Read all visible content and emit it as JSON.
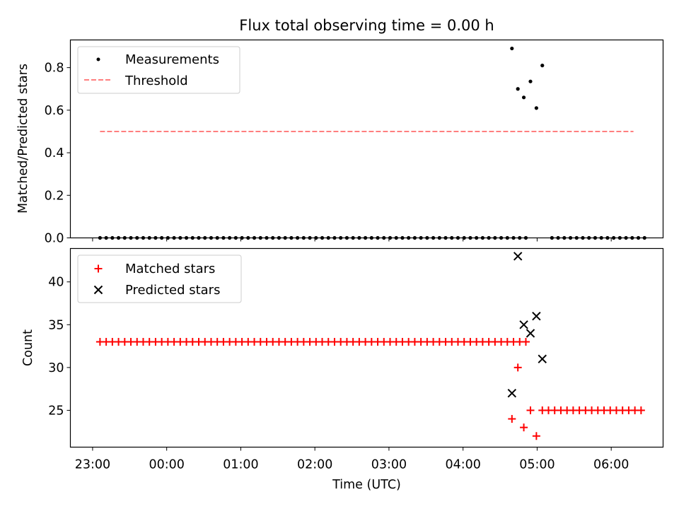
{
  "chart_data": [
    {
      "type": "scatter",
      "title": "Flux total observing time = 0.00 h",
      "xlabel": "",
      "ylabel": "Matched/Predicted stars",
      "ylim": [
        0.0,
        0.93
      ],
      "xlim_hours_since_23": [
        -0.3,
        7.7
      ],
      "yticks": [
        0.0,
        0.2,
        0.4,
        0.6,
        0.8
      ],
      "ytick_labels": [
        "0.0",
        "0.2",
        "0.4",
        "0.6",
        "0.8"
      ],
      "legend": {
        "position": "upper-left",
        "entries": [
          "Measurements",
          "Threshold"
        ]
      },
      "threshold": {
        "name": "Threshold",
        "y": 0.5,
        "x_start": 0.1,
        "x_end": 7.3,
        "color": "#ff7f7f"
      },
      "series": [
        {
          "name": "Measurements",
          "color": "#000000",
          "marker": "dot",
          "zero_run_1": {
            "start": 0.1,
            "step": 0.0833,
            "count": 70,
            "value": 0.0
          },
          "zero_run_2": {
            "start": 6.2,
            "step": 0.0833,
            "count": 16,
            "value": 0.0
          },
          "points": [
            {
              "x": 5.66,
              "y": 0.89
            },
            {
              "x": 5.74,
              "y": 0.7
            },
            {
              "x": 5.82,
              "y": 0.66
            },
            {
              "x": 5.91,
              "y": 0.735
            },
            {
              "x": 5.99,
              "y": 0.61
            },
            {
              "x": 6.07,
              "y": 0.81
            }
          ]
        }
      ]
    },
    {
      "type": "scatter",
      "title": "",
      "xlabel": "Time (UTC)",
      "ylabel": "Count",
      "ylim": [
        20.7,
        43.9
      ],
      "xlim_hours_since_23": [
        -0.3,
        7.7
      ],
      "yticks": [
        25,
        30,
        35,
        40
      ],
      "ytick_labels": [
        "25",
        "30",
        "35",
        "40"
      ],
      "xticks": [
        0,
        1,
        2,
        3,
        4,
        5,
        6,
        7
      ],
      "xtick_labels": [
        "23:00",
        "00:00",
        "01:00",
        "02:00",
        "03:00",
        "04:00",
        "05:00",
        "06:00"
      ],
      "legend": {
        "position": "upper-left",
        "entries": [
          "Matched stars",
          "Predicted stars"
        ]
      },
      "series": [
        {
          "name": "Matched stars",
          "color": "#ff0000",
          "marker": "plus",
          "run_1": {
            "start": 0.1,
            "step": 0.0833,
            "count": 70,
            "value": 33
          },
          "run_2": {
            "start": 6.07,
            "step": 0.0833,
            "count": 17,
            "value": 25
          },
          "points": [
            {
              "x": 5.66,
              "y": 24
            },
            {
              "x": 5.74,
              "y": 30
            },
            {
              "x": 5.82,
              "y": 23
            },
            {
              "x": 5.91,
              "y": 25
            },
            {
              "x": 5.99,
              "y": 22
            }
          ]
        },
        {
          "name": "Predicted stars",
          "color": "#000000",
          "marker": "x",
          "points": [
            {
              "x": 5.66,
              "y": 27
            },
            {
              "x": 5.74,
              "y": 43
            },
            {
              "x": 5.82,
              "y": 35
            },
            {
              "x": 5.91,
              "y": 34
            },
            {
              "x": 5.99,
              "y": 36
            },
            {
              "x": 6.07,
              "y": 31
            }
          ]
        }
      ]
    }
  ]
}
